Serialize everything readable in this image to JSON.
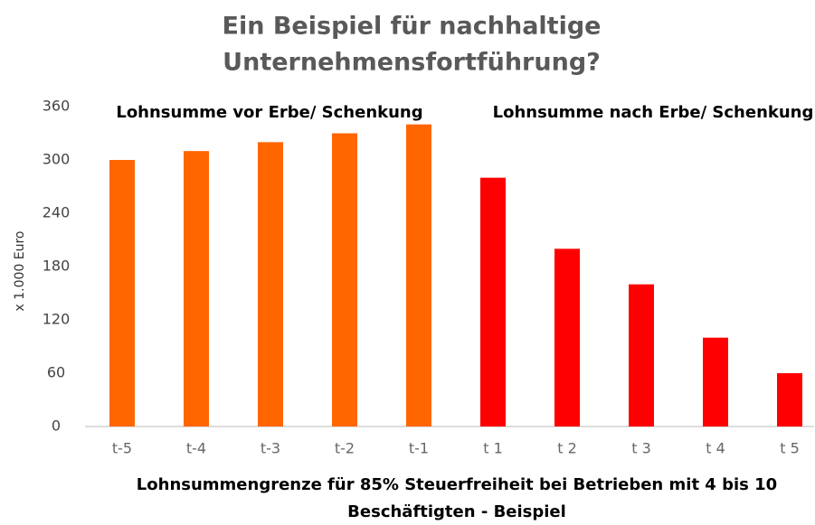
{
  "chart_data": {
    "type": "bar",
    "title": [
      "Ein Beispiel für nachhaltige",
      "Unternehmensfortführung?"
    ],
    "annotations": [
      "Lohnsumme vor Erbe/ Schenkung",
      "Lohnsumme nach Erbe/ Schenkung"
    ],
    "y_label": "x 1.000 Euro",
    "x_label": [
      "Lohnsummengrenze für 85% Steuerfreiheit bei Betrieben mit 4 bis 10",
      "Beschäftigten - Beispiel"
    ],
    "categories": [
      "t-5",
      "t-4",
      "t-3",
      "t-2",
      "t-1",
      "t 1",
      "t 2",
      "t 3",
      "t 4",
      "t 5"
    ],
    "values": [
      300,
      310,
      320,
      330,
      340,
      280,
      200,
      160,
      100,
      60
    ],
    "colors": [
      "#ff6600",
      "#ff6600",
      "#ff6600",
      "#ff6600",
      "#ff6600",
      "#ff0000",
      "#ff0000",
      "#ff0000",
      "#ff0000",
      "#ff0000"
    ],
    "ylim": [
      0,
      360
    ],
    "yticks": [
      0,
      60,
      120,
      180,
      240,
      300,
      360
    ],
    "grid": false
  }
}
